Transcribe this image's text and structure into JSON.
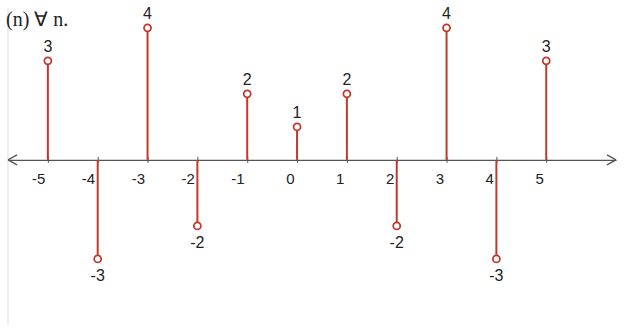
{
  "chart_data": {
    "type": "stem",
    "title": "(n) ∀ n.",
    "x": [
      -5,
      -4,
      -3,
      -2,
      -1,
      0,
      1,
      2,
      3,
      4,
      5
    ],
    "values": [
      3,
      -3,
      4,
      -2,
      2,
      1,
      2,
      -2,
      4,
      -3,
      3
    ],
    "color": "#c0392b",
    "marker": "circle",
    "xlim": [
      -5.8,
      6.4
    ],
    "xticks": [
      -5,
      -4,
      -3,
      -2,
      -1,
      0,
      1,
      2,
      3,
      4,
      5
    ],
    "ylim": [
      -5,
      4.6
    ],
    "data_labels": true,
    "tick_labels": "x"
  }
}
